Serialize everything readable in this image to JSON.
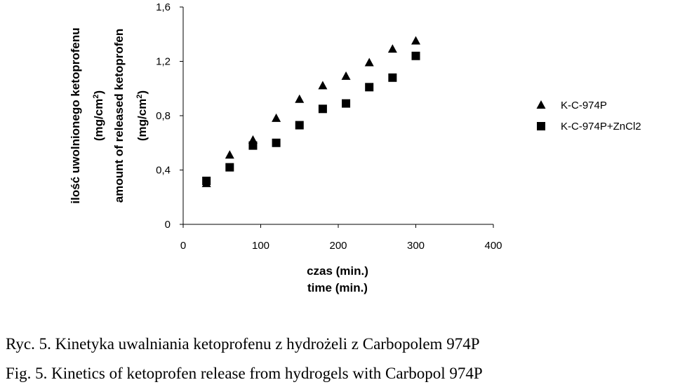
{
  "chart_data": {
    "type": "scatter",
    "xlabel_pl": "czas (min.)",
    "xlabel_en": "time (min.)",
    "ylabel_pl": [
      "ilość uwolnionego ketoprofenu",
      "(mg/cm",
      "2",
      ")"
    ],
    "ylabel_en": [
      "amount of released ketoprofen",
      "(mg/cm",
      "2",
      ")"
    ],
    "xlim": [
      0,
      400
    ],
    "ylim": [
      0,
      1.6
    ],
    "x_ticks": [
      0,
      100,
      200,
      300,
      400
    ],
    "x_tick_labels": [
      "0",
      "100",
      "200",
      "300",
      "400"
    ],
    "y_ticks": [
      0,
      0.4,
      0.8,
      1.2,
      1.6
    ],
    "y_tick_labels": [
      "0",
      "0,4",
      "0,8",
      "1,2",
      "1,6"
    ],
    "grid": false,
    "legend_position": "right",
    "series": [
      {
        "name": "K-C-974P",
        "marker": "triangle",
        "color": "#000000",
        "x": [
          30,
          60,
          90,
          120,
          150,
          180,
          210,
          240,
          270,
          300
        ],
        "y": [
          0.3,
          0.51,
          0.62,
          0.78,
          0.92,
          1.02,
          1.09,
          1.19,
          1.29,
          1.35
        ]
      },
      {
        "name": "K-C-974P+ZnCl2",
        "marker": "square",
        "color": "#000000",
        "x": [
          30,
          60,
          90,
          120,
          150,
          180,
          210,
          240,
          270,
          300
        ],
        "y": [
          0.32,
          0.42,
          0.58,
          0.6,
          0.73,
          0.85,
          0.89,
          1.01,
          1.08,
          1.24
        ]
      }
    ]
  },
  "captions": {
    "polish": "Ryc. 5. Kinetyka uwalniania ketoprofenu z hydrożeli z Carbopolem 974P",
    "english": "Fig. 5. Kinetics of ketoprofen release from hydrogels with Carbopol 974P"
  }
}
